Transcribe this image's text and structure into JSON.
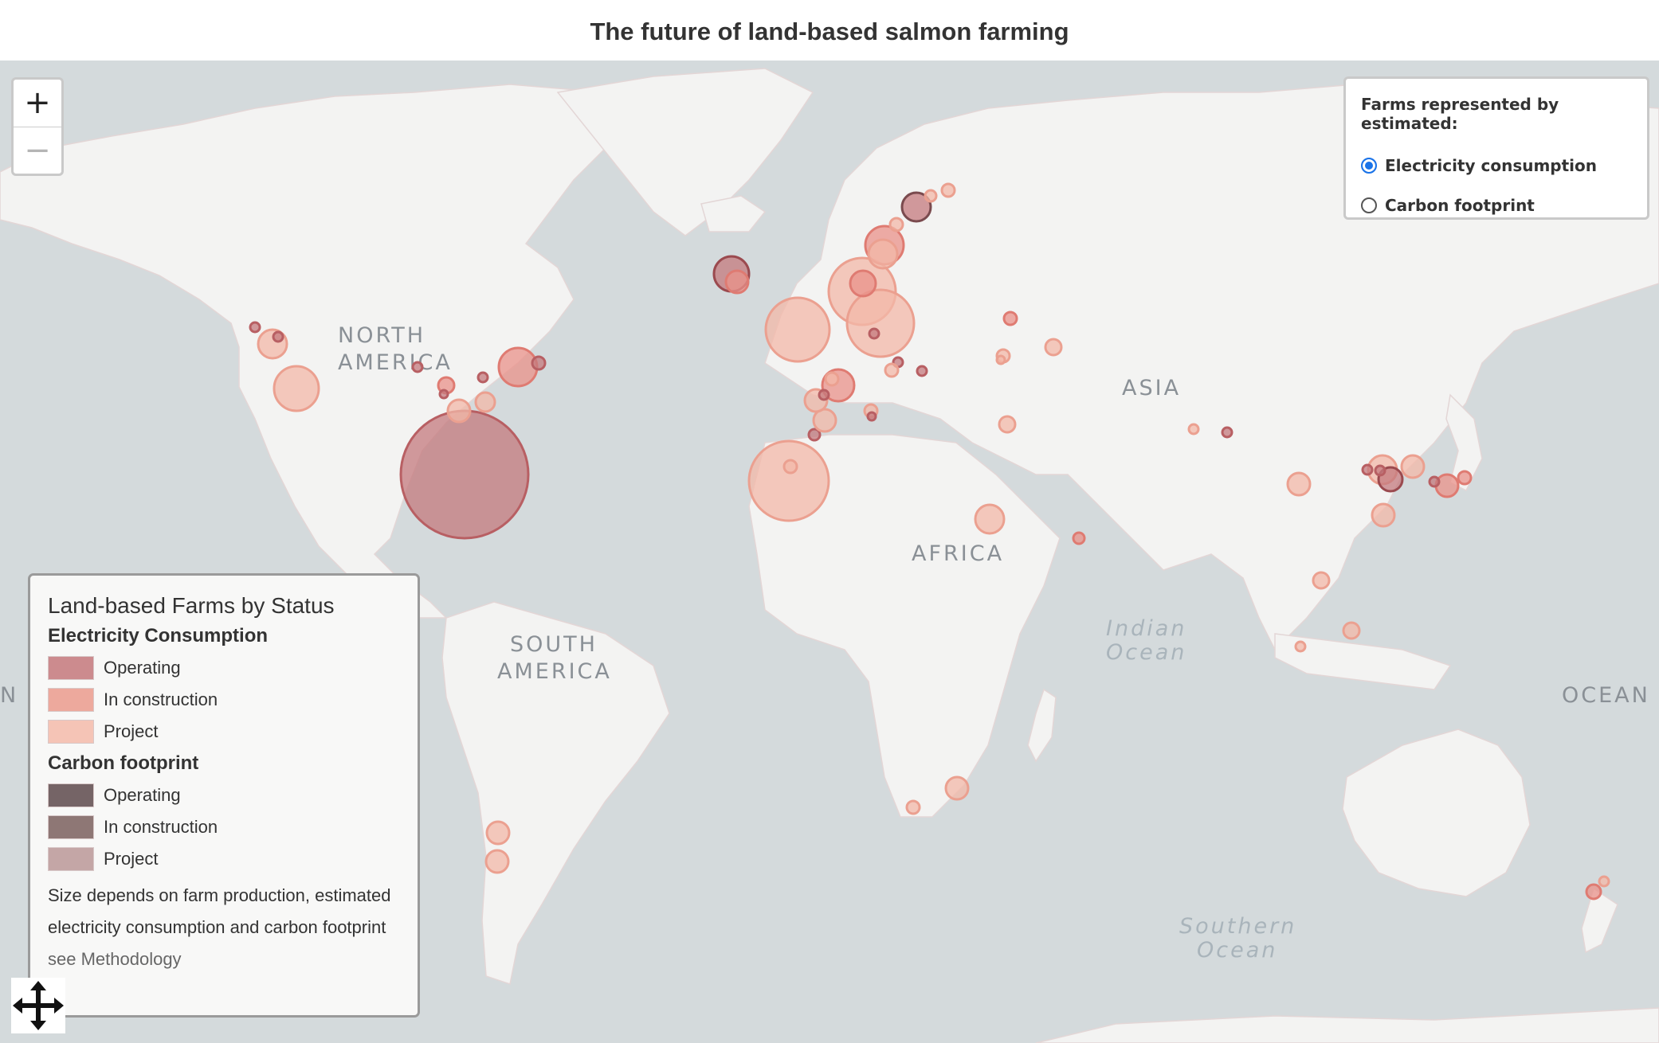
{
  "title": "The future of land-based salmon farming",
  "map": {
    "continents": [
      "NORTH",
      "AMERICA",
      "SOUTH",
      "AMERICA",
      "ASIA",
      "AFRICA",
      "OCEAN",
      "N"
    ],
    "oceans": [
      "Indian",
      "Ocean",
      "Southern",
      "Ocean"
    ]
  },
  "zoom": {
    "in_label": "+",
    "out_label": "−"
  },
  "toggle": {
    "heading": "Farms represented by estimated:",
    "options": [
      "Electricity consumption",
      "Carbon footprint"
    ],
    "selected": "Electricity consumption"
  },
  "legend": {
    "title": "Land-based Farms by Status",
    "sections": [
      {
        "name": "Electricity Consumption",
        "items": [
          {
            "label": "Operating",
            "color": "#cc8b8e"
          },
          {
            "label": "In construction",
            "color": "#eda99d"
          },
          {
            "label": "Project",
            "color": "#f5c4b6"
          }
        ]
      },
      {
        "name": "Carbon footprint",
        "items": [
          {
            "label": "Operating",
            "color": "#756466"
          },
          {
            "label": "In construction",
            "color": "#8e7775"
          },
          {
            "label": "Project",
            "color": "#c4a6a6"
          }
        ]
      }
    ],
    "note_line1": "Size depends on farm production, estimated",
    "note_line2": "electricity consumption and carbon footprint",
    "link": "see Methodology"
  },
  "colors": {
    "operating": "#c47a7d",
    "construction": "#e9928a",
    "project": "#f3b8a8"
  },
  "icons": {
    "pan": "move-arrows-icon"
  }
}
